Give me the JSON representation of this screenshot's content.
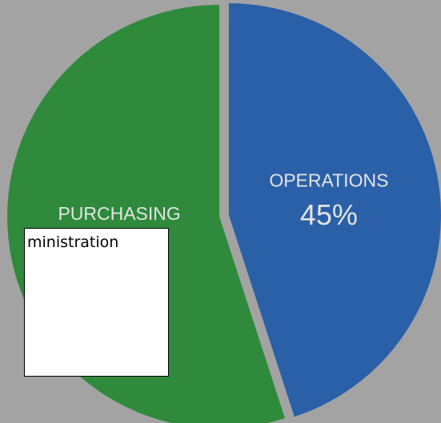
{
  "chart_data": {
    "type": "pie",
    "categories": [
      "PURCHASING",
      "OPERATIONS"
    ],
    "values": [
      55,
      45
    ],
    "value_labels": [
      "55%",
      "45%"
    ],
    "colors": [
      "#2f8a3c",
      "#2a60a8"
    ]
  },
  "overlay_box": {
    "text": "ministration"
  }
}
